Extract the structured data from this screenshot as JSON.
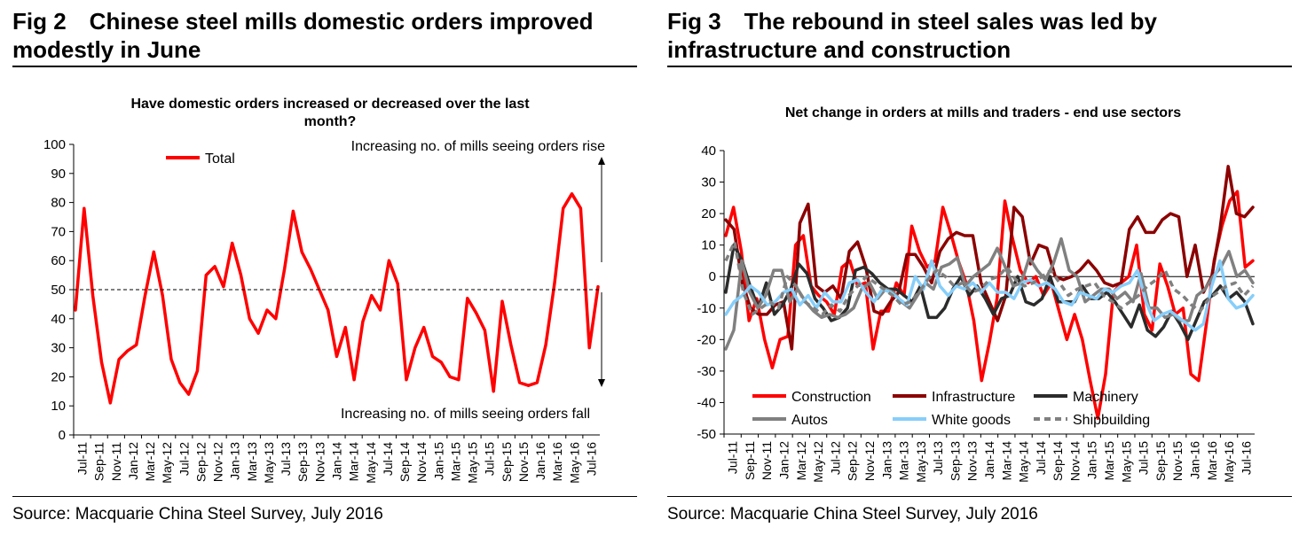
{
  "left": {
    "fig_label": "Fig 2",
    "title": "Chinese steel mills domestic orders improved modestly in June",
    "source": "Source: Macquarie China Steel Survey, July 2016"
  },
  "right": {
    "fig_label": "Fig 3",
    "title": "The rebound in steel sales was led by infrastructure and construction",
    "source": "Source: Macquarie China Steel Survey, July 2016"
  },
  "chart_data": [
    {
      "type": "line",
      "title": "Have domestic orders increased or decreased over the last month?",
      "ylim": [
        0,
        100
      ],
      "yticks": [
        0,
        10,
        20,
        30,
        40,
        50,
        60,
        70,
        80,
        90,
        100
      ],
      "reference_line": 50,
      "tick_labels": [
        "Jul-11",
        "Sep-11",
        "Nov-11",
        "Jan-12",
        "Mar-12",
        "May-12",
        "Jul-12",
        "Sep-12",
        "Nov-12",
        "Jan-13",
        "Mar-13",
        "May-13",
        "Jul-13",
        "Sep-13",
        "Nov-13",
        "Jan-14",
        "Mar-14",
        "May-14",
        "Jul-14",
        "Sep-14",
        "Nov-14",
        "Jan-15",
        "Mar-15",
        "May-15",
        "Jul-15",
        "Sep-15",
        "Nov-15",
        "Jan-16",
        "Mar-16",
        "May-16",
        "Jul-16"
      ],
      "annotations": {
        "up": "Increasing no. of mills seeing orders rise",
        "down": "Increasing no. of mills seeing orders fall"
      },
      "series": [
        {
          "name": "Total",
          "color": "#ff0000",
          "values": [
            43,
            78,
            48,
            25,
            11,
            26,
            29,
            31,
            48,
            63,
            48,
            26,
            18,
            14,
            22,
            55,
            58,
            51,
            66,
            55,
            40,
            35,
            43,
            40,
            57,
            77,
            63,
            57,
            50,
            43,
            27,
            37,
            19,
            39,
            48,
            43,
            60,
            52,
            19,
            30,
            37,
            27,
            25,
            20,
            19,
            47,
            42,
            36,
            15,
            46,
            31,
            18,
            17,
            18,
            31,
            52,
            78,
            83,
            78,
            30,
            51
          ]
        }
      ]
    },
    {
      "type": "line",
      "title": "Net change in orders at mills and traders - end use sectors",
      "ylim": [
        -50,
        40
      ],
      "yticks": [
        -50,
        -40,
        -30,
        -20,
        -10,
        0,
        10,
        20,
        30,
        40
      ],
      "tick_labels": [
        "Jul-11",
        "Sep-11",
        "Nov-11",
        "Jan-12",
        "Mar-12",
        "May-12",
        "Jul-12",
        "Sep-12",
        "Nov-12",
        "Jan-13",
        "Mar-13",
        "May-13",
        "Jul-13",
        "Sep-13",
        "Nov-13",
        "Jan-14",
        "Mar-14",
        "May-14",
        "Jul-14",
        "Sep-14",
        "Nov-14",
        "Jan-15",
        "Mar-15",
        "May-15",
        "Jul-15",
        "Sep-15",
        "Nov-15",
        "Jan-16",
        "Mar-16",
        "May-16",
        "Jul-16"
      ],
      "series": [
        {
          "name": "Construction",
          "color": "#ff0000",
          "dash": "",
          "values": [
            13,
            22,
            8,
            -14,
            -7,
            -20,
            -29,
            -20,
            -19,
            10,
            13,
            -3,
            -6,
            -8,
            -12,
            3,
            5,
            -3,
            -2,
            -23,
            -11,
            -11,
            -2,
            -6,
            16,
            8,
            3,
            5,
            22,
            14,
            5,
            -2,
            -14,
            -33,
            -21,
            -7,
            24,
            12,
            2,
            -2,
            0,
            -6,
            -2,
            -11,
            -20,
            -12,
            -20,
            -33,
            -45,
            -31,
            -5,
            -2,
            0,
            10,
            -12,
            -17,
            4,
            -3,
            -12,
            -10,
            -31,
            -33,
            -15,
            5,
            16,
            24,
            27,
            3,
            5
          ]
        },
        {
          "name": "Infrastructure",
          "color": "#8b0000",
          "dash": "",
          "values": [
            18,
            15,
            -2,
            -10,
            -12,
            -12,
            -9,
            -8,
            -23,
            17,
            23,
            -3,
            -5,
            -3,
            -7,
            8,
            11,
            3,
            -11,
            -12,
            -8,
            -5,
            7,
            7,
            3,
            -2,
            8,
            12,
            14,
            13,
            13,
            -2,
            -8,
            -14,
            -6,
            22,
            19,
            4,
            10,
            9,
            0,
            -1,
            0,
            2,
            5,
            2,
            -2,
            -3,
            -2,
            15,
            19,
            14,
            14,
            18,
            20,
            19,
            0,
            10,
            -5,
            0,
            15,
            35,
            20,
            19,
            22
          ]
        },
        {
          "name": "Machinery",
          "color": "#2b2b2b",
          "dash": "",
          "values": [
            -5,
            10,
            5,
            -3,
            -10,
            -2,
            -12,
            -9,
            -4,
            4,
            1,
            -7,
            -10,
            -14,
            -13,
            -10,
            2,
            3,
            1,
            -2,
            -4,
            -4,
            -6,
            -8,
            -3,
            -13,
            -13,
            -10,
            -4,
            0,
            -6,
            -3,
            -7,
            -12,
            -7,
            -6,
            0,
            -8,
            -9,
            -7,
            0,
            -8,
            -8,
            -8,
            -3,
            -7,
            -7,
            -5,
            -8,
            -12,
            -16,
            -9,
            -17,
            -19,
            -16,
            -11,
            -15,
            -20,
            -14,
            -8,
            -6,
            -3,
            -7,
            -5,
            -8,
            -15
          ]
        },
        {
          "name": "Autos",
          "color": "#808080",
          "dash": "",
          "values": [
            -23,
            -17,
            5,
            -5,
            -10,
            -6,
            2,
            2,
            -8,
            -4,
            -8,
            -11,
            -13,
            -12,
            -13,
            -12,
            -10,
            -4,
            -2,
            -7,
            -4,
            -5,
            -8,
            -10,
            -6,
            -2,
            -4,
            3,
            4,
            6,
            -3,
            0,
            2,
            4,
            9,
            3,
            -3,
            -2,
            6,
            2,
            -1,
            4,
            12,
            2,
            0,
            -8,
            -6,
            -4,
            -4,
            -7,
            -5,
            -8,
            1,
            -10,
            -10,
            -13,
            -12,
            -14,
            -14,
            -6,
            -4,
            0,
            3,
            8,
            0,
            2,
            -2
          ]
        },
        {
          "name": "White goods",
          "color": "#87cefa",
          "dash": "",
          "values": [
            -12,
            -8,
            -6,
            -3,
            -5,
            -9,
            -8,
            -5,
            -4,
            -9,
            -6,
            -10,
            -5,
            -8,
            -8,
            -2,
            -1,
            -5,
            -8,
            -4,
            -5,
            -7,
            -9,
            0,
            -4,
            5,
            -3,
            -6,
            -3,
            -4,
            -2,
            -5,
            -2,
            -5,
            -5,
            -7,
            -2,
            -1,
            -3,
            -2,
            -4,
            -8,
            -9,
            -5,
            -6,
            -7,
            -4,
            -5,
            -3,
            -2,
            2,
            -8,
            -14,
            -12,
            -11,
            -13,
            -15,
            -17,
            -15,
            -3,
            5,
            -7,
            -10,
            -9,
            -6
          ]
        },
        {
          "name": "Shipbuilding",
          "color": "#808080",
          "dash": "7,5",
          "values": [
            5,
            11,
            -5,
            -12,
            -10,
            -8,
            -10,
            0,
            -3,
            -8,
            -10,
            -12,
            -9,
            -11,
            -6,
            -3,
            0,
            -2,
            -4,
            -6,
            -9,
            -8,
            -5,
            -1,
            2,
            0,
            -3,
            -2,
            -5,
            -4,
            -1,
            0,
            3,
            -1,
            -3,
            -2,
            0,
            2,
            -2,
            -6,
            -4,
            -3,
            -2,
            -6,
            -8,
            -10,
            -8,
            -6,
            -3,
            -1,
            2,
            -4,
            -6,
            -9,
            -11,
            -7,
            -5,
            -3,
            -2,
            -6,
            -3
          ]
        }
      ]
    }
  ]
}
